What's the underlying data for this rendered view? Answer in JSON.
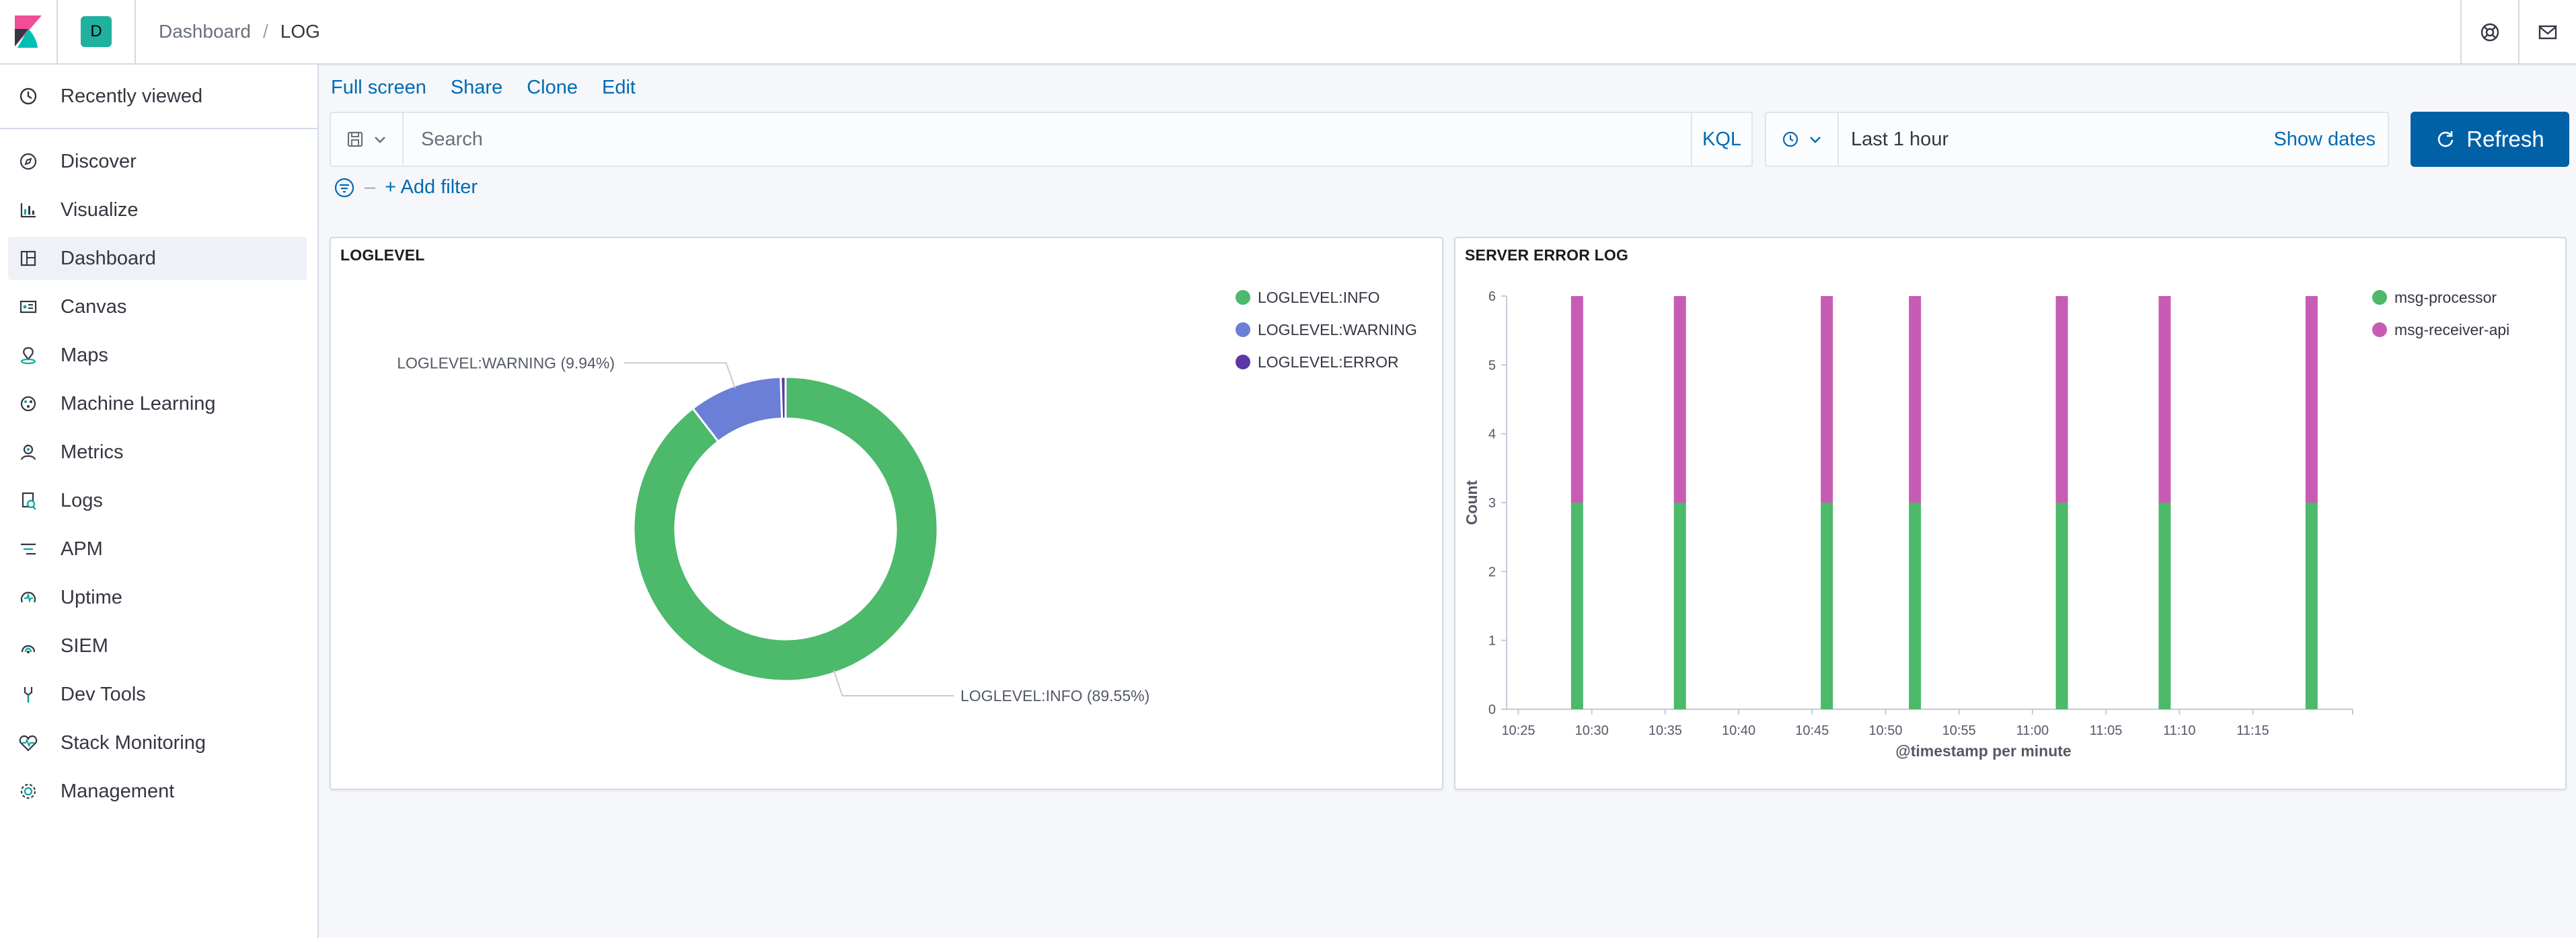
{
  "header": {
    "space_initial": "D",
    "breadcrumbs": [
      "Dashboard",
      "LOG"
    ]
  },
  "sidebar": {
    "recent": "Recently viewed",
    "items": [
      {
        "label": "Discover",
        "icon": "compass-icon"
      },
      {
        "label": "Visualize",
        "icon": "visualize-icon"
      },
      {
        "label": "Dashboard",
        "icon": "dashboard-icon",
        "active": true
      },
      {
        "label": "Canvas",
        "icon": "canvas-icon"
      },
      {
        "label": "Maps",
        "icon": "maps-icon"
      },
      {
        "label": "Machine Learning",
        "icon": "machine-learning-icon"
      },
      {
        "label": "Metrics",
        "icon": "metrics-icon"
      },
      {
        "label": "Logs",
        "icon": "logs-icon"
      },
      {
        "label": "APM",
        "icon": "apm-icon"
      },
      {
        "label": "Uptime",
        "icon": "uptime-icon"
      },
      {
        "label": "SIEM",
        "icon": "siem-icon"
      },
      {
        "label": "Dev Tools",
        "icon": "dev-tools-icon"
      },
      {
        "label": "Stack Monitoring",
        "icon": "stack-monitoring-icon"
      },
      {
        "label": "Management",
        "icon": "gear-icon"
      }
    ]
  },
  "toolbar": {
    "full_screen": "Full screen",
    "share": "Share",
    "clone": "Clone",
    "edit": "Edit"
  },
  "search": {
    "placeholder": "Search",
    "language": "KQL"
  },
  "time": {
    "range": "Last 1 hour",
    "show_dates": "Show dates",
    "refresh": "Refresh"
  },
  "filters": {
    "add_filter": "+ Add filter"
  },
  "colors": {
    "accent": "#006bb4",
    "refresh_bg": "#0061a6",
    "info": "#54b399",
    "warning": "#6092c0",
    "error": "#5b37a8",
    "processor": "#54b399",
    "receiver": "#d36086"
  },
  "chart_data": [
    {
      "type": "pie",
      "title": "LOGLEVEL",
      "donut": true,
      "legend_position": "top-right",
      "slices": [
        {
          "label": "LOGLEVEL:INFO",
          "value": 89.55,
          "color": "#4cb96b",
          "callout": "LOGLEVEL:INFO (89.55%)"
        },
        {
          "label": "LOGLEVEL:WARNING",
          "value": 9.94,
          "color": "#6b7fd7",
          "callout": "LOGLEVEL:WARNING (9.94%)"
        },
        {
          "label": "LOGLEVEL:ERROR",
          "value": 0.51,
          "color": "#5b37a8"
        }
      ]
    },
    {
      "type": "bar",
      "stacked": true,
      "title": "SERVER ERROR LOG",
      "xlabel": "@timestamp per minute",
      "ylabel": "Count",
      "ylim": [
        0,
        6
      ],
      "yticks": [
        0,
        1,
        2,
        3,
        4,
        5,
        6
      ],
      "legend_position": "top-right",
      "x_ticks": [
        "10:25",
        "10:30",
        "10:35",
        "10:40",
        "10:45",
        "10:50",
        "10:55",
        "11:00",
        "11:05",
        "11:10",
        "11:15"
      ],
      "x_range_minutes": [
        -0.8,
        56.8
      ],
      "x_tick_minutes": [
        0,
        5,
        10,
        15,
        20,
        25,
        30,
        35,
        40,
        45,
        50
      ],
      "bar_x_minutes": [
        4,
        11,
        21,
        27,
        37,
        44,
        54
      ],
      "series": [
        {
          "name": "msg-processor",
          "color": "#4cb96b",
          "values": [
            3,
            3,
            3,
            3,
            3,
            3,
            3
          ]
        },
        {
          "name": "msg-receiver-api",
          "color": "#c75cb4",
          "values": [
            3,
            3,
            3,
            3,
            3,
            3,
            3
          ]
        }
      ]
    }
  ]
}
